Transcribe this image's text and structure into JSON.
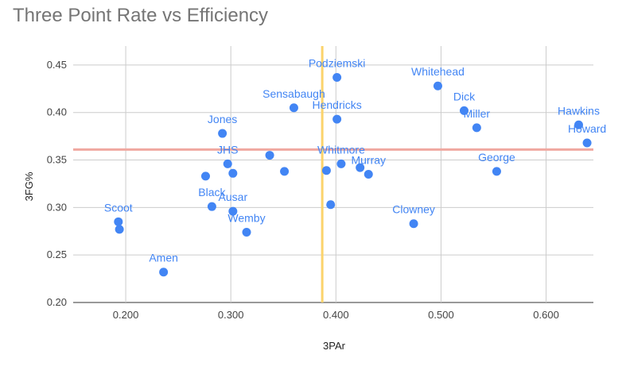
{
  "chart_data": {
    "type": "scatter",
    "title": "Three Point Rate vs Efficiency",
    "xlabel": "3PAr",
    "ylabel": "3FG%",
    "xlim": [
      0.15,
      0.645
    ],
    "ylim": [
      0.2,
      0.47
    ],
    "x_ticks": [
      "0.200",
      "0.300",
      "0.400",
      "0.500",
      "0.600"
    ],
    "y_ticks": [
      "0.20",
      "0.25",
      "0.30",
      "0.35",
      "0.40",
      "0.45"
    ],
    "grid": true,
    "reference_lines": {
      "vertical_x": 0.387,
      "horizontal_y": 0.361,
      "vertical_color": "#fbd36b",
      "horizontal_color": "#f0a8a0"
    },
    "point_color": "#4285f4",
    "points": [
      {
        "x": 0.193,
        "y": 0.285,
        "label": "Scoot"
      },
      {
        "x": 0.194,
        "y": 0.277,
        "label": ""
      },
      {
        "x": 0.236,
        "y": 0.232,
        "label": "Amen"
      },
      {
        "x": 0.276,
        "y": 0.333,
        "label": ""
      },
      {
        "x": 0.282,
        "y": 0.301,
        "label": "Black"
      },
      {
        "x": 0.292,
        "y": 0.378,
        "label": "Jones"
      },
      {
        "x": 0.297,
        "y": 0.346,
        "label": "JHS"
      },
      {
        "x": 0.302,
        "y": 0.336,
        "label": ""
      },
      {
        "x": 0.302,
        "y": 0.296,
        "label": "Ausar"
      },
      {
        "x": 0.315,
        "y": 0.274,
        "label": "Wemby"
      },
      {
        "x": 0.337,
        "y": 0.355,
        "label": ""
      },
      {
        "x": 0.351,
        "y": 0.338,
        "label": ""
      },
      {
        "x": 0.36,
        "y": 0.405,
        "label": "Sensabaugh"
      },
      {
        "x": 0.391,
        "y": 0.339,
        "label": ""
      },
      {
        "x": 0.395,
        "y": 0.303,
        "label": ""
      },
      {
        "x": 0.401,
        "y": 0.437,
        "label": "Podziemski"
      },
      {
        "x": 0.401,
        "y": 0.393,
        "label": "Hendricks"
      },
      {
        "x": 0.405,
        "y": 0.346,
        "label": "Whitmore"
      },
      {
        "x": 0.423,
        "y": 0.342,
        "label": ""
      },
      {
        "x": 0.431,
        "y": 0.335,
        "label": "Murray"
      },
      {
        "x": 0.474,
        "y": 0.283,
        "label": "Clowney"
      },
      {
        "x": 0.497,
        "y": 0.428,
        "label": "Whitehead"
      },
      {
        "x": 0.522,
        "y": 0.402,
        "label": "Dick"
      },
      {
        "x": 0.534,
        "y": 0.384,
        "label": "Miller"
      },
      {
        "x": 0.553,
        "y": 0.338,
        "label": "George"
      },
      {
        "x": 0.631,
        "y": 0.387,
        "label": "Hawkins"
      },
      {
        "x": 0.639,
        "y": 0.368,
        "label": "Howard"
      }
    ]
  }
}
